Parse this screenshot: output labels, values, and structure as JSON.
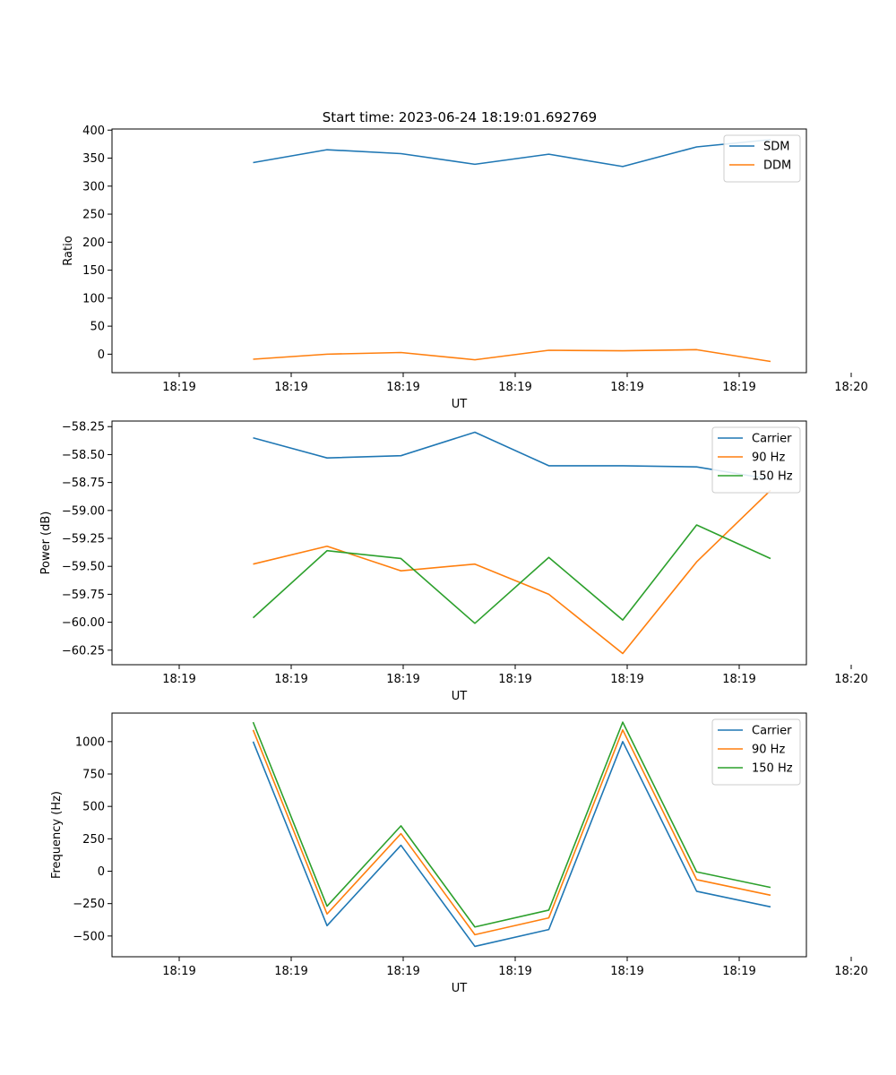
{
  "figure": {
    "title": "Start time: 2023-06-24 18:19:01.692769"
  },
  "chart_data": [
    {
      "type": "line",
      "title": "Start time: 2023-06-24 18:19:01.692769",
      "xlabel": "UT",
      "ylabel": "Ratio",
      "x_tick_labels": [
        "18:19",
        "18:19",
        "18:19",
        "18:19",
        "18:19",
        "18:19",
        "18:20"
      ],
      "y_ticks": [
        0,
        50,
        100,
        150,
        200,
        250,
        300,
        350,
        400
      ],
      "y_tick_labels": [
        "0",
        "50",
        "100",
        "150",
        "200",
        "250",
        "300",
        "350",
        "400"
      ],
      "ylim": [
        -33,
        402
      ],
      "x_seconds": [
        3.3,
        6.6,
        9.9,
        13.2,
        16.5,
        19.8,
        23.1,
        26.4
      ],
      "xlim": [
        -3,
        28
      ],
      "x_tick_seconds": [
        0,
        5,
        10,
        15,
        20,
        25,
        30
      ],
      "legend_position": "upper-right",
      "series": [
        {
          "name": "SDM",
          "color": "#1f77b4",
          "values": [
            342,
            365,
            358,
            339,
            357,
            335,
            370,
            383
          ]
        },
        {
          "name": "DDM",
          "color": "#ff7f0e",
          "values": [
            -9,
            0,
            3,
            -10,
            7,
            6,
            8,
            -13
          ]
        }
      ]
    },
    {
      "type": "line",
      "xlabel": "UT",
      "ylabel": "Power (dB)",
      "x_tick_labels": [
        "18:19",
        "18:19",
        "18:19",
        "18:19",
        "18:19",
        "18:19",
        "18:20"
      ],
      "y_ticks": [
        -60.25,
        -60.0,
        -59.75,
        -59.5,
        -59.25,
        -59.0,
        -58.75,
        -58.5,
        -58.25
      ],
      "y_tick_labels": [
        "−60.25",
        "−60.00",
        "−59.75",
        "−59.50",
        "−59.25",
        "−59.00",
        "−58.75",
        "−58.50",
        "−58.25"
      ],
      "ylim": [
        -60.38,
        -58.2
      ],
      "x_seconds": [
        3.3,
        6.6,
        9.9,
        13.2,
        16.5,
        19.8,
        23.1,
        26.4
      ],
      "xlim": [
        -3,
        28
      ],
      "x_tick_seconds": [
        0,
        5,
        10,
        15,
        20,
        25,
        30
      ],
      "legend_position": "upper-right",
      "series": [
        {
          "name": "Carrier",
          "color": "#1f77b4",
          "values": [
            -58.35,
            -58.53,
            -58.51,
            -58.3,
            -58.6,
            -58.6,
            -58.61,
            -58.72
          ]
        },
        {
          "name": "90 Hz",
          "color": "#ff7f0e",
          "values": [
            -59.48,
            -59.32,
            -59.54,
            -59.48,
            -59.75,
            -60.28,
            -59.46,
            -58.82
          ]
        },
        {
          "name": "150 Hz",
          "color": "#2ca02c",
          "values": [
            -59.96,
            -59.36,
            -59.43,
            -60.01,
            -59.42,
            -59.98,
            -59.13,
            -59.43
          ]
        }
      ]
    },
    {
      "type": "line",
      "xlabel": "UT",
      "ylabel": "Frequency (Hz)",
      "x_tick_labels": [
        "18:19",
        "18:19",
        "18:19",
        "18:19",
        "18:19",
        "18:19",
        "18:20"
      ],
      "y_ticks": [
        -500,
        -250,
        0,
        250,
        500,
        750,
        1000
      ],
      "y_tick_labels": [
        "−500",
        "−250",
        "0",
        "250",
        "500",
        "750",
        "1000"
      ],
      "ylim": [
        -660,
        1220
      ],
      "x_seconds": [
        3.3,
        6.6,
        9.9,
        13.2,
        16.5,
        19.8,
        23.1,
        26.4
      ],
      "xlim": [
        -3,
        28
      ],
      "x_tick_seconds": [
        0,
        5,
        10,
        15,
        20,
        25,
        30
      ],
      "legend_position": "upper-right",
      "series": [
        {
          "name": "Carrier",
          "color": "#1f77b4",
          "values": [
            1000,
            -420,
            200,
            -580,
            -450,
            1000,
            -155,
            -275
          ]
        },
        {
          "name": "90 Hz",
          "color": "#ff7f0e",
          "values": [
            1090,
            -330,
            290,
            -490,
            -360,
            1090,
            -65,
            -185
          ]
        },
        {
          "name": "150 Hz",
          "color": "#2ca02c",
          "values": [
            1150,
            -270,
            350,
            -430,
            -300,
            1150,
            -5,
            -125
          ]
        }
      ]
    }
  ]
}
